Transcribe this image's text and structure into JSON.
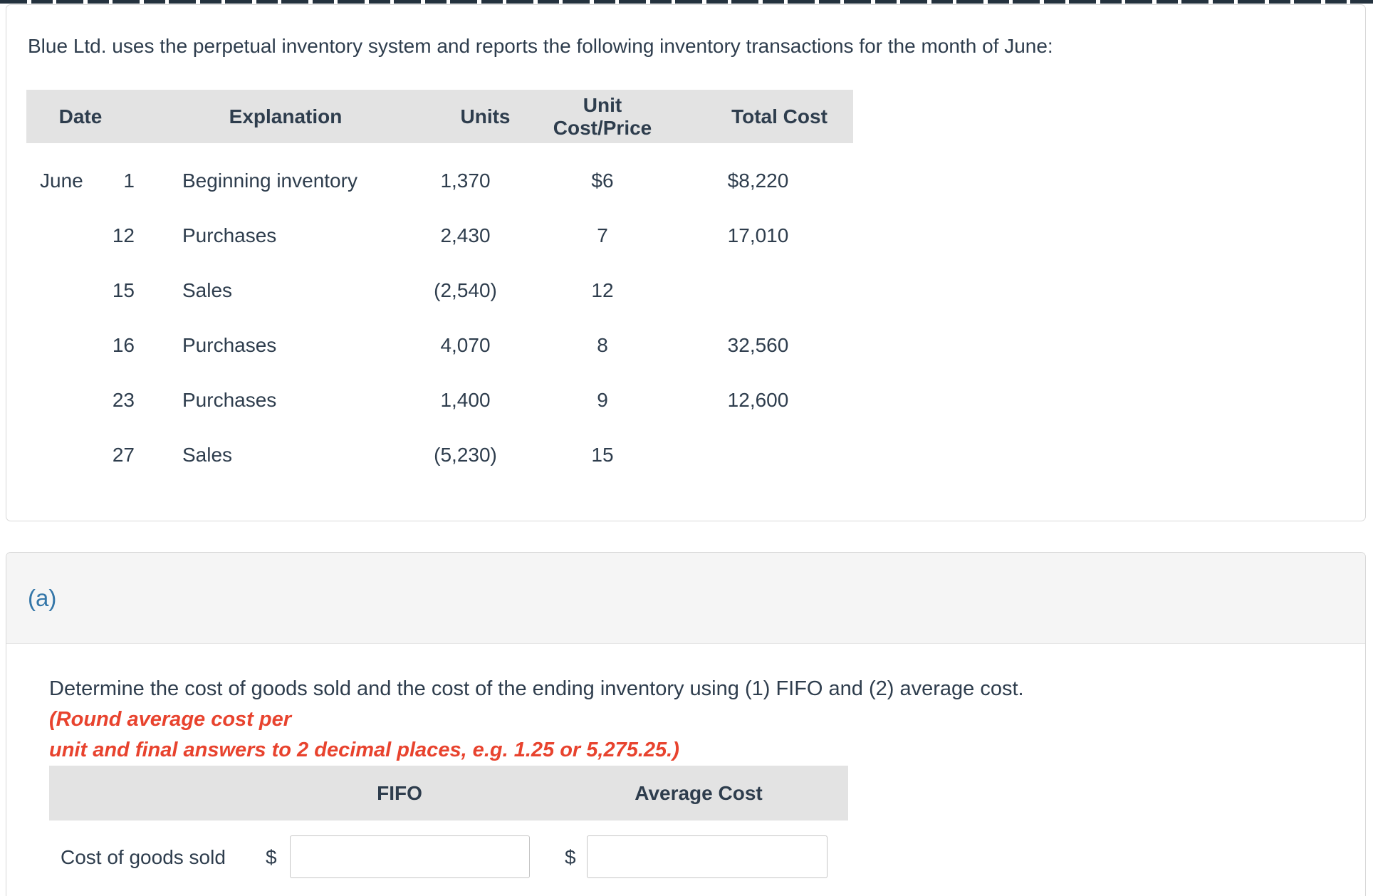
{
  "top": {
    "problem_statement": "Blue Ltd. uses the perpetual inventory system and reports the following inventory transactions for the month of June:"
  },
  "inventory_table": {
    "headers": {
      "date": "Date",
      "explanation": "Explanation",
      "units": "Units",
      "unit_cost": "Unit Cost/Price",
      "total_cost": "Total Cost"
    },
    "rows": [
      {
        "month": "June",
        "day": "1",
        "explanation": "Beginning inventory",
        "units": "1,370",
        "unit_cost": "$6",
        "total_cost": "$8,220"
      },
      {
        "month": "",
        "day": "12",
        "explanation": "Purchases",
        "units": "2,430",
        "unit_cost": "7",
        "total_cost": "17,010"
      },
      {
        "month": "",
        "day": "15",
        "explanation": "Sales",
        "units": "(2,540)",
        "unit_cost": "12",
        "total_cost": ""
      },
      {
        "month": "",
        "day": "16",
        "explanation": "Purchases",
        "units": "4,070",
        "unit_cost": "8",
        "total_cost": "32,560"
      },
      {
        "month": "",
        "day": "23",
        "explanation": "Purchases",
        "units": "1,400",
        "unit_cost": "9",
        "total_cost": "12,600"
      },
      {
        "month": "",
        "day": "27",
        "explanation": "Sales",
        "units": "(5,230)",
        "unit_cost": "15",
        "total_cost": ""
      }
    ]
  },
  "section": {
    "label": "(a)"
  },
  "instruction": {
    "line1_dark": "Determine the cost of goods sold and the cost of the ending inventory using (1) FIFO and (2) average cost. ",
    "line1_red": "(Round average cost per",
    "line2_red": "unit and final answers to 2 decimal places, e.g. 1.25 or 5,275.25.)"
  },
  "answer_table": {
    "col_fifo": "FIFO",
    "col_average": "Average Cost",
    "row_label": "Cost of goods sold",
    "fifo_currency": "$",
    "average_currency": "$",
    "fifo_input_value": "",
    "average_input_value": ""
  },
  "colors": {
    "text": "#2e3d4d",
    "accent_blue": "#3476a8",
    "warning_red": "#e8432e",
    "table_header_bg": "#e3e3e3",
    "section_header_bg": "#f5f5f5"
  }
}
